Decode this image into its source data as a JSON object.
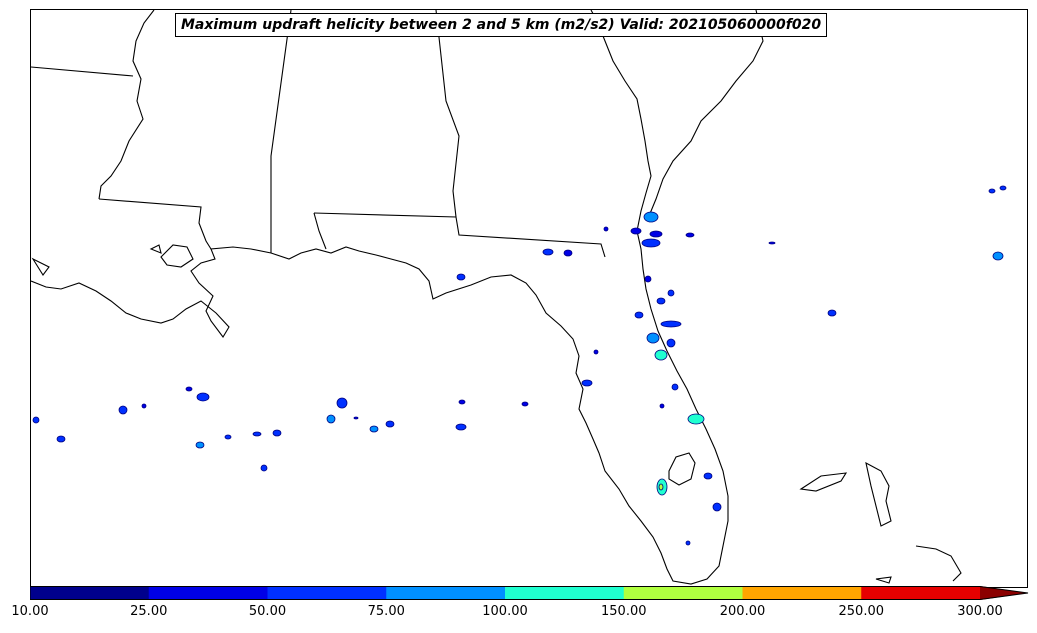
{
  "title": "Maximum updraft helicity between 2 and 5 km (m2/s2) Valid: 202105060000f020",
  "colorbar": {
    "ticks": [
      "10.00",
      "25.00",
      "50.00",
      "75.00",
      "100.00",
      "150.00",
      "200.00",
      "250.00",
      "300.00"
    ],
    "colors": [
      "#00008c",
      "#0000e6",
      "#0030ff",
      "#0090ff",
      "#20ffd0",
      "#b0ff40",
      "#ffa500",
      "#e60000",
      "#8b0000"
    ],
    "extend": "max"
  },
  "map": {
    "region": "Southeastern United States / Florida / Gulf of Mexico",
    "land_color": "#ffffff",
    "coast_color": "#000000"
  }
}
